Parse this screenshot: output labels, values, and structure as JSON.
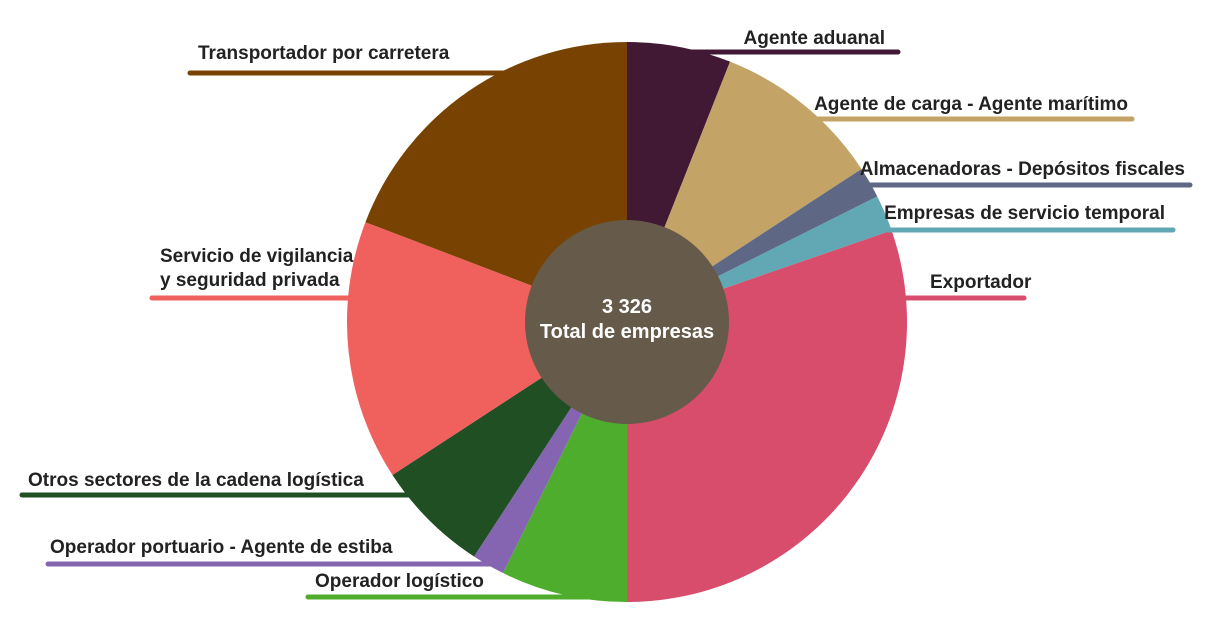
{
  "chart_data": {
    "type": "pie",
    "style": "donut-with-center-circle",
    "center_total": "3 326",
    "center_label": "Total de empresas",
    "slices": [
      {
        "name": "Agente aduanal",
        "label_lines": [
          "Agente aduanal"
        ],
        "value": 6.0,
        "color": "#411935"
      },
      {
        "name": "Agente de carga - Agente marítimo",
        "label_lines": [
          "Agente de carga - Agente marítimo"
        ],
        "value": 9.8,
        "color": "#C4A366"
      },
      {
        "name": "Almacenadoras - Depósitos fiscales",
        "label_lines": [
          "Almacenadoras - Depósitos fiscales"
        ],
        "value": 1.8,
        "color": "#5E6784"
      },
      {
        "name": "Empresas de servicio temporal",
        "label_lines": [
          "Empresas de servicio temporal"
        ],
        "value": 2.1,
        "color": "#62A8B4"
      },
      {
        "name": "Exportador",
        "label_lines": [
          "Exportador"
        ],
        "value": 30.3,
        "color": "#D84C6C"
      },
      {
        "name": "Operador logístico",
        "label_lines": [
          "Operador logístico"
        ],
        "value": 7.3,
        "color": "#4FAD2D"
      },
      {
        "name": "Operador portuario - Agente de estiba",
        "label_lines": [
          "Operador portuario - Agente de estiba"
        ],
        "value": 1.9,
        "color": "#8565B1"
      },
      {
        "name": "Otros sectores de la cadena logística",
        "label_lines": [
          "Otros sectores de la cadena logística"
        ],
        "value": 6.6,
        "color": "#214F24"
      },
      {
        "name": "Servicio de vigilancia y seguridad privada",
        "label_lines": [
          "Servicio de vigilancia",
          "y seguridad privada"
        ],
        "value": 15.0,
        "color": "#F0605D"
      },
      {
        "name": "Transportador por carretera",
        "label_lines": [
          "Transportador por carretera"
        ],
        "value": 19.2,
        "color": "#784302"
      }
    ],
    "center_color": "#665A4A"
  }
}
